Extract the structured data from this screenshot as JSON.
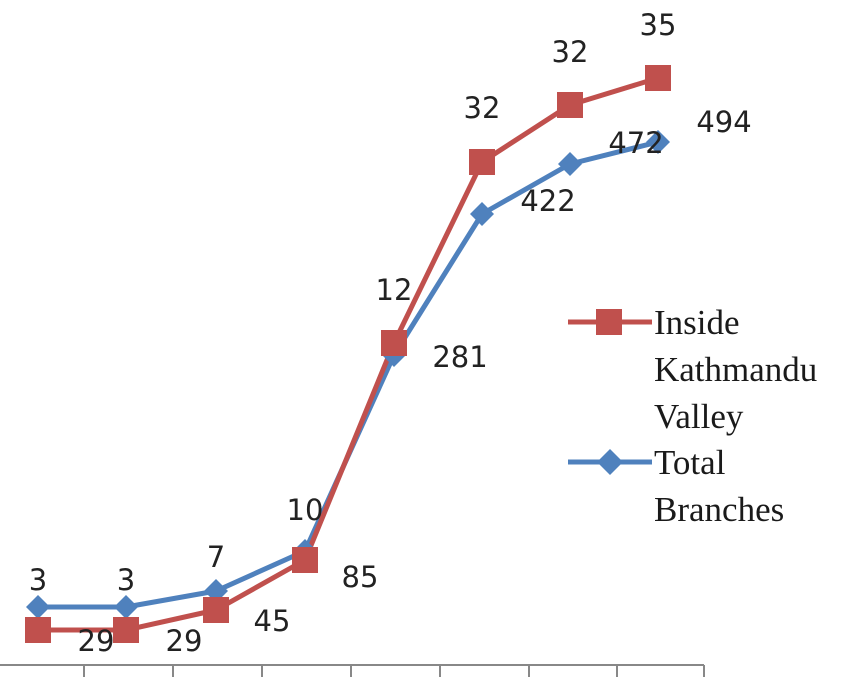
{
  "chart_data": {
    "type": "line",
    "categories": [
      "",
      "",
      "",
      "",
      "",
      "",
      "",
      ""
    ],
    "series": [
      {
        "name": "Inside Kathmandu Valley",
        "display_lines": [
          "Inside",
          "Kathmandu",
          "Valley"
        ],
        "color": "#c0504d",
        "marker": "square",
        "labels": [
          "3",
          "3",
          "7",
          "10",
          "12",
          "32",
          "32",
          "35"
        ]
      },
      {
        "name": "Total Branches",
        "display_lines": [
          "Total",
          "Branches"
        ],
        "color": "#4f81bd",
        "marker": "diamond",
        "values": [
          29,
          29,
          45,
          85,
          281,
          422,
          472,
          494
        ],
        "labels": [
          "29",
          "29",
          "45",
          "85",
          "281",
          "422",
          "472",
          "494"
        ]
      }
    ],
    "legend": "right",
    "grid": false
  }
}
